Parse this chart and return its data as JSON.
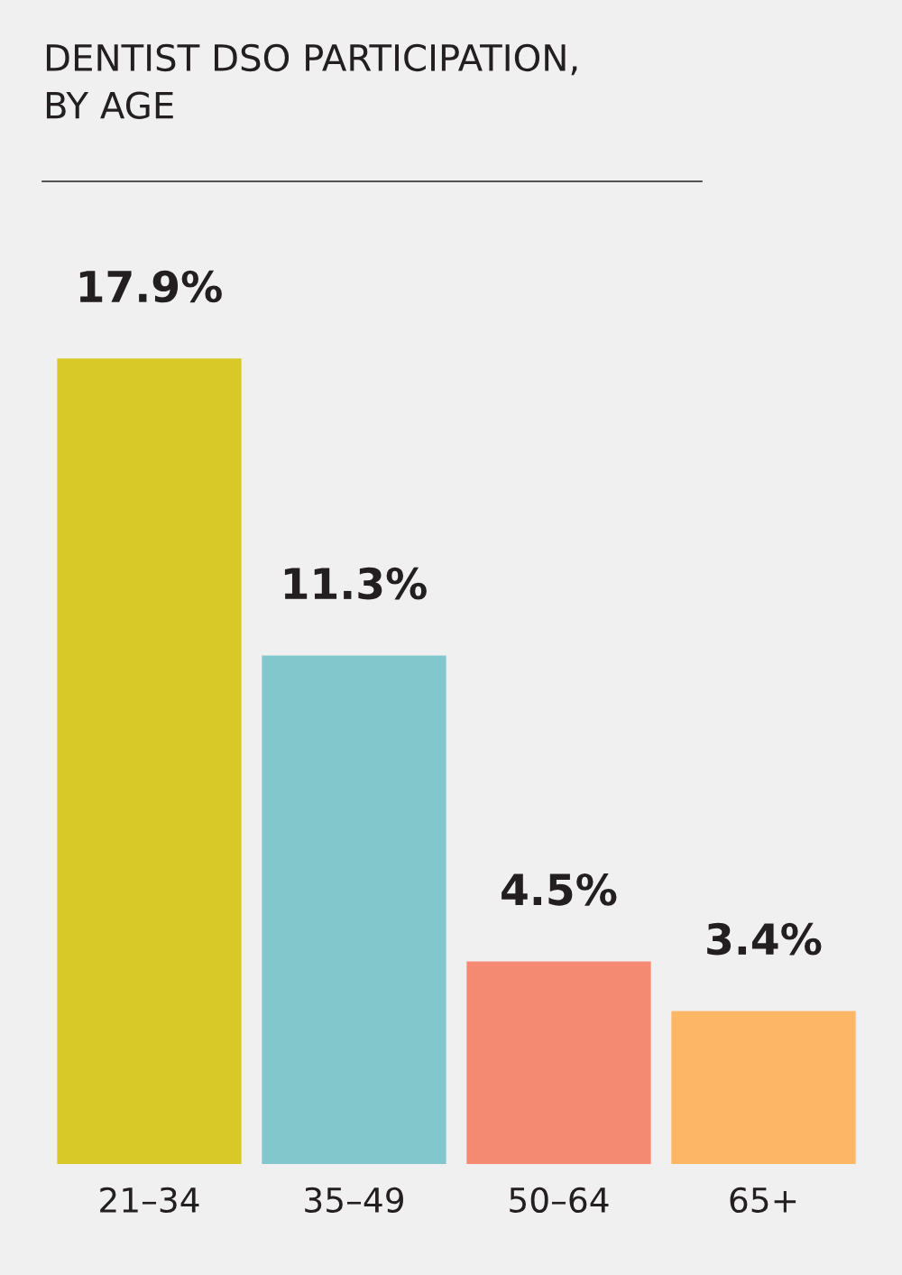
{
  "chart_data": {
    "type": "bar",
    "title": "DENTIST DSO PARTICIPATION,\nBY AGE",
    "categories": [
      "21–34",
      "35–49",
      "50–64",
      "65+"
    ],
    "values": [
      17.9,
      11.3,
      4.5,
      3.4
    ],
    "colors": [
      "#d8c928",
      "#82c7cc",
      "#f58a72",
      "#fdb665"
    ],
    "value_labels": [
      "17.9%",
      "11.3%",
      "4.5%",
      "3.4%"
    ],
    "grid": false,
    "legend": false
  }
}
